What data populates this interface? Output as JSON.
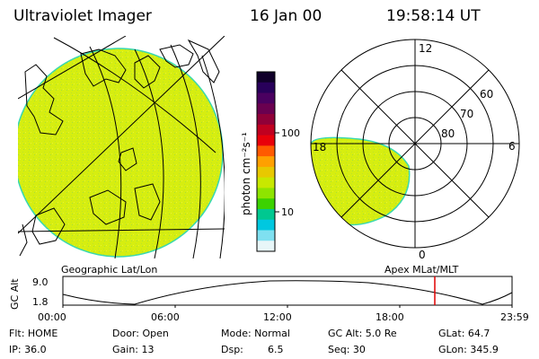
{
  "header": {
    "instrument": "Ultraviolet Imager",
    "date": "16 Jan 00",
    "time": "19:58:14 UT"
  },
  "left_panel": {
    "caption": "Geographic Lat/Lon"
  },
  "colorbar": {
    "label": "photon cm⁻²s⁻¹",
    "ticks": [
      "100",
      "10"
    ],
    "colors_top_to_bottom": [
      "#10002a",
      "#28005a",
      "#4a0060",
      "#6a0050",
      "#900038",
      "#c00020",
      "#e8000a",
      "#ff5a00",
      "#ffa000",
      "#e8c800",
      "#c8e800",
      "#8ee400",
      "#3cd200",
      "#00c890",
      "#00c8e0",
      "#7fe0f0",
      "#e8f6f8"
    ]
  },
  "right_panel": {
    "caption": "Apex MLat/MLT",
    "mlt_labels": {
      "top": "12",
      "right": "6",
      "bottom": "0",
      "left": "18"
    },
    "lat_labels": [
      "60",
      "70",
      "80"
    ]
  },
  "altitude_plot": {
    "ylabel": "GC Alt",
    "yticks": [
      "9.0",
      "1.8"
    ],
    "xticks": [
      "00:00",
      "06:00",
      "12:00",
      "18:00",
      "23:59"
    ],
    "marker_time": "19:58"
  },
  "status": {
    "flt": "Flt: HOME",
    "ip": "IP: 36.0",
    "door": "Door: Open",
    "gain": "Gain: 13",
    "mode": "Mode: Normal",
    "dsp_label": "Dsp:",
    "dsp_value": "6.5",
    "gc_alt": "GC Alt: 5.0 Re",
    "seq": "Seq: 30",
    "glat": "GLat: 64.7",
    "glon": "GLon: 345.9"
  },
  "colors": {
    "aurora": "#d6ee10",
    "aurora_edge": "#38d8b0",
    "marker": "#e00000"
  }
}
